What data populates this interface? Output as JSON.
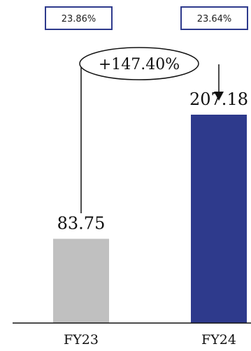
{
  "chart_data": {
    "type": "bar",
    "categories": [
      "FY23",
      "FY24"
    ],
    "values": [
      83.75,
      207.18
    ],
    "value_labels": [
      "83.75",
      "207.18"
    ],
    "top_badges": [
      "23.86%",
      "23.64%"
    ],
    "growth_label": "+147.40%",
    "bar_colors": [
      "#c0c0c0",
      "#2e3a8c"
    ],
    "badge_border_color": "#2e3a8c",
    "title": "",
    "xlabel": "",
    "ylabel": "",
    "ylim": [
      0,
      207.18
    ]
  }
}
